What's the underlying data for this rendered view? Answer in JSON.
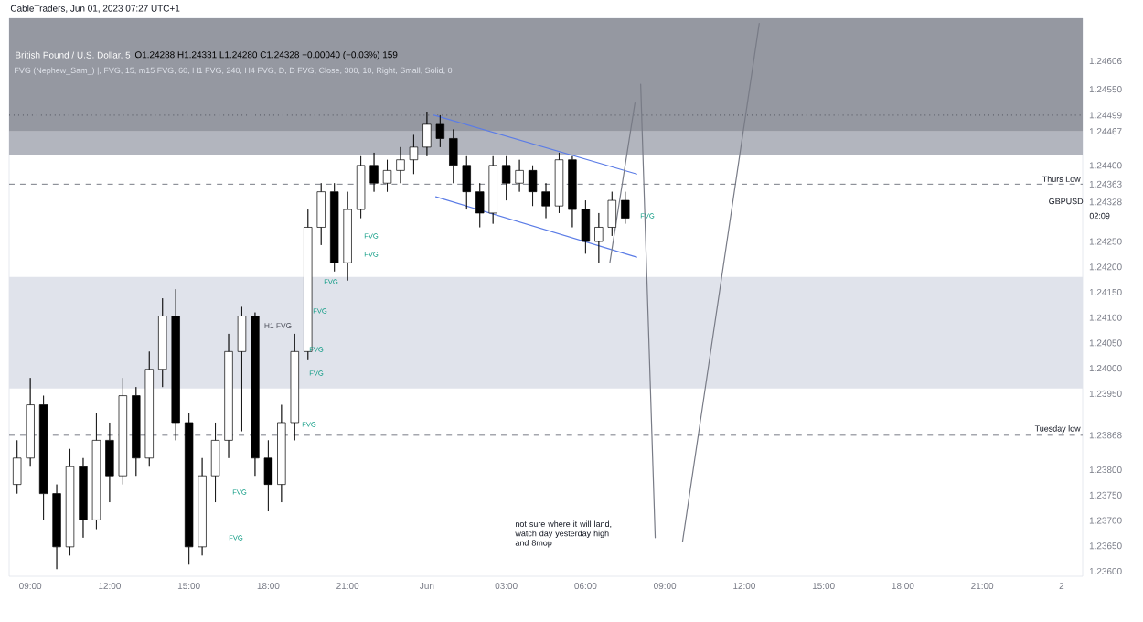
{
  "chart_data": {
    "type": "candlestick",
    "title": "British Pound / U.S. Dollar, 5",
    "subtitle": "O1.24288 H1.24331 L1.24280 C1.24328 −0.00040 (−0.03%) 159",
    "x": [
      "2023-05-31T08:30",
      "2023-05-31T09:00",
      "2023-05-31T09:30",
      "2023-05-31T10:00",
      "2023-05-31T10:30",
      "2023-05-31T11:00",
      "2023-05-31T11:30",
      "2023-05-31T12:00",
      "2023-05-31T12:30",
      "2023-05-31T13:00",
      "2023-05-31T13:30",
      "2023-05-31T14:00",
      "2023-05-31T14:30",
      "2023-05-31T15:00",
      "2023-05-31T15:30",
      "2023-05-31T16:00",
      "2023-05-31T16:30",
      "2023-05-31T17:00",
      "2023-05-31T17:30",
      "2023-05-31T18:00",
      "2023-05-31T18:30",
      "2023-05-31T19:00",
      "2023-05-31T19:30",
      "2023-05-31T20:00",
      "2023-05-31T20:30",
      "2023-05-31T21:00",
      "2023-05-31T21:30",
      "2023-05-31T22:00",
      "2023-05-31T22:30",
      "2023-05-31T23:00",
      "2023-05-31T23:30",
      "2023-06-01T00:00",
      "2023-06-01T00:30",
      "2023-06-01T01:00",
      "2023-06-01T01:30",
      "2023-06-01T02:00",
      "2023-06-01T02:30",
      "2023-06-01T03:00",
      "2023-06-01T03:30",
      "2023-06-01T04:00",
      "2023-06-01T04:30",
      "2023-06-01T05:00",
      "2023-06-01T05:30",
      "2023-06-01T06:00",
      "2023-06-01T06:30",
      "2023-06-01T07:00",
      "2023-06-01T07:30"
    ],
    "ohlc": [
      [
        1.23771,
        1.23858,
        1.23753,
        1.23823
      ],
      [
        1.23823,
        1.23981,
        1.23806,
        1.23928
      ],
      [
        1.23928,
        1.23946,
        1.23701,
        1.23753
      ],
      [
        1.23753,
        1.23771,
        1.23604,
        1.23648
      ],
      [
        1.23648,
        1.23841,
        1.23631,
        1.23806
      ],
      [
        1.23806,
        1.23823,
        1.23666,
        1.23701
      ],
      [
        1.23701,
        1.23911,
        1.23683,
        1.23858
      ],
      [
        1.23858,
        1.23893,
        1.23736,
        1.23788
      ],
      [
        1.23788,
        1.23981,
        1.23771,
        1.23946
      ],
      [
        1.23946,
        1.23963,
        1.23788,
        1.23823
      ],
      [
        1.23823,
        1.24033,
        1.23806,
        1.23998
      ],
      [
        1.23998,
        1.24138,
        1.23963,
        1.24103
      ],
      [
        1.24103,
        1.24156,
        1.23858,
        1.23893
      ],
      [
        1.23893,
        1.23911,
        1.23613,
        1.23648
      ],
      [
        1.23648,
        1.23823,
        1.23631,
        1.23788
      ],
      [
        1.23788,
        1.23893,
        1.23736,
        1.23858
      ],
      [
        1.23858,
        1.24068,
        1.23823,
        1.24033
      ],
      [
        1.24033,
        1.24121,
        1.23876,
        1.24103
      ],
      [
        1.24103,
        1.2411,
        1.23788,
        1.23823
      ],
      [
        1.23823,
        1.23858,
        1.23718,
        1.23771
      ],
      [
        1.23771,
        1.23928,
        1.23736,
        1.23893
      ],
      [
        1.23893,
        1.24068,
        1.23858,
        1.24033
      ],
      [
        1.24033,
        1.24313,
        1.24016,
        1.24278
      ],
      [
        1.24278,
        1.24365,
        1.24243,
        1.24348
      ],
      [
        1.24348,
        1.24365,
        1.24191,
        1.24208
      ],
      [
        1.24208,
        1.24348,
        1.24173,
        1.24313
      ],
      [
        1.24313,
        1.24418,
        1.24296,
        1.244
      ],
      [
        1.244,
        1.24425,
        1.24348,
        1.24365
      ],
      [
        1.24365,
        1.24411,
        1.24348,
        1.2439
      ],
      [
        1.2439,
        1.24436,
        1.24365,
        1.24411
      ],
      [
        1.24411,
        1.2446,
        1.24383,
        1.24436
      ],
      [
        1.24436,
        1.24506,
        1.24418,
        1.24481
      ],
      [
        1.24481,
        1.24499,
        1.24436,
        1.24453
      ],
      [
        1.24453,
        1.24471,
        1.24365,
        1.244
      ],
      [
        1.244,
        1.24418,
        1.24313,
        1.24348
      ],
      [
        1.24348,
        1.24365,
        1.24278,
        1.24306
      ],
      [
        1.24306,
        1.24418,
        1.24285,
        1.244
      ],
      [
        1.244,
        1.24418,
        1.24331,
        1.24365
      ],
      [
        1.24365,
        1.24411,
        1.24348,
        1.2439
      ],
      [
        1.2439,
        1.244,
        1.2432,
        1.24348
      ],
      [
        1.24348,
        1.24365,
        1.24296,
        1.2432
      ],
      [
        1.2432,
        1.24425,
        1.24306,
        1.24411
      ],
      [
        1.24411,
        1.24418,
        1.24278,
        1.24313
      ],
      [
        1.24313,
        1.24331,
        1.24226,
        1.2425
      ],
      [
        1.2425,
        1.24306,
        1.24208,
        1.24278
      ],
      [
        1.24278,
        1.24348,
        1.24261,
        1.24331
      ],
      [
        1.24331,
        1.24348,
        1.24285,
        1.24296
      ]
    ],
    "series": [
      {
        "type": "line",
        "color": "#5b7ce6",
        "x": [
          "2023-06-01T00:16",
          "2023-06-01T07:56"
        ],
        "values": [
          1.24499,
          1.24383
        ]
      },
      {
        "type": "line",
        "color": "#5b7ce6",
        "x": [
          "2023-06-01T00:20",
          "2023-06-01T07:56"
        ],
        "values": [
          1.24338,
          1.24219
        ]
      },
      {
        "type": "line",
        "color": "#787b86",
        "x": [
          "2023-06-01T06:55",
          "2023-06-01T07:52"
        ],
        "values": [
          1.24208,
          1.24523
        ]
      },
      {
        "type": "line",
        "color": "#787b86",
        "x": [
          "2023-06-01T08:05",
          "2023-06-01T08:38"
        ],
        "values": [
          1.2456,
          1.23666
        ]
      },
      {
        "type": "line",
        "color": "#787b86",
        "x": [
          "2023-06-01T09:40",
          "2023-06-01T12:34"
        ],
        "values": [
          1.23658,
          1.2468
        ]
      }
    ],
    "xlim": [
      "2023-05-31T08:12",
      "2023-06-02T00:48"
    ],
    "ylim": [
      1.2359,
      1.2469
    ],
    "xticks": [
      {
        "value": "2023-05-31T09:00",
        "label": "09:00"
      },
      {
        "value": "2023-05-31T12:00",
        "label": "12:00"
      },
      {
        "value": "2023-05-31T15:00",
        "label": "15:00"
      },
      {
        "value": "2023-05-31T18:00",
        "label": "18:00"
      },
      {
        "value": "2023-05-31T21:00",
        "label": "21:00"
      },
      {
        "value": "2023-06-01T00:00",
        "label": "Jun"
      },
      {
        "value": "2023-06-01T03:00",
        "label": "03:00"
      },
      {
        "value": "2023-06-01T06:00",
        "label": "06:00"
      },
      {
        "value": "2023-06-01T09:00",
        "label": "09:00"
      },
      {
        "value": "2023-06-01T12:00",
        "label": "12:00"
      },
      {
        "value": "2023-06-01T15:00",
        "label": "15:00"
      },
      {
        "value": "2023-06-01T18:00",
        "label": "18:00"
      },
      {
        "value": "2023-06-01T21:00",
        "label": "21:00"
      },
      {
        "value": "2023-06-02T00:00",
        "label": "2"
      }
    ],
    "yticks": [
      {
        "value": 1.24606,
        "label": "1.24606"
      },
      {
        "value": 1.2455,
        "label": "1.24550"
      },
      {
        "value": 1.24499,
        "label": "1.24499"
      },
      {
        "value": 1.24467,
        "label": "1.24467"
      },
      {
        "value": 1.244,
        "label": "1.24400"
      },
      {
        "value": 1.24363,
        "label": "1.24363"
      },
      {
        "value": 1.24328,
        "label": "1.24328"
      },
      {
        "value": 1.2425,
        "label": "1.24250"
      },
      {
        "value": 1.242,
        "label": "1.24200"
      },
      {
        "value": 1.2415,
        "label": "1.24150"
      },
      {
        "value": 1.241,
        "label": "1.24100"
      },
      {
        "value": 1.2405,
        "label": "1.24050"
      },
      {
        "value": 1.24,
        "label": "1.24000"
      },
      {
        "value": 1.2395,
        "label": "1.23950"
      },
      {
        "value": 1.23868,
        "label": "1.23868"
      },
      {
        "value": 1.238,
        "label": "1.23800"
      },
      {
        "value": 1.2375,
        "label": "1.23750"
      },
      {
        "value": 1.237,
        "label": "1.23700"
      },
      {
        "value": 1.2365,
        "label": "1.23650"
      },
      {
        "value": 1.236,
        "label": "1.23600"
      }
    ],
    "bands": [
      {
        "axis": "y",
        "from": 1.24467,
        "to": 1.2469,
        "color": "#9598a1"
      },
      {
        "axis": "y",
        "from": 1.2442,
        "to": 1.24467,
        "color": "#b2b5be"
      },
      {
        "axis": "y",
        "from": 1.2396,
        "to": 1.2418,
        "color": "#e0e3eb"
      }
    ],
    "ref_lines": [
      {
        "axis": "y",
        "value": 1.24499,
        "line_style": "dotted",
        "color": "#50535e"
      },
      {
        "axis": "y",
        "value": 1.24363,
        "label": "Thurs Low",
        "line_style": "dashed",
        "color": "#787b86"
      },
      {
        "axis": "y",
        "value": 1.23868,
        "label": "Tuesday low",
        "line_style": "dashed",
        "color": "#787b86"
      }
    ],
    "annotations": [
      "CableTraders, Jun 01, 2023 07:27 UTC+1",
      "FVG (Nephew_Sam_) |, FVG, 15, m15 FVG, 60, H1 FVG, 240, H4 FVG, D, D FVG, Close, 300, 10, Right, Small, Solid, 0",
      "GBPUSD",
      "02:09",
      "not sure where it will land, watch day yesterday high and 8mop",
      "H1 FVG",
      "FVG",
      "FVG",
      "FVG",
      "FVG",
      "FVG",
      "FVG",
      "FVG",
      "FVG",
      "FVG",
      "FVG"
    ]
  }
}
